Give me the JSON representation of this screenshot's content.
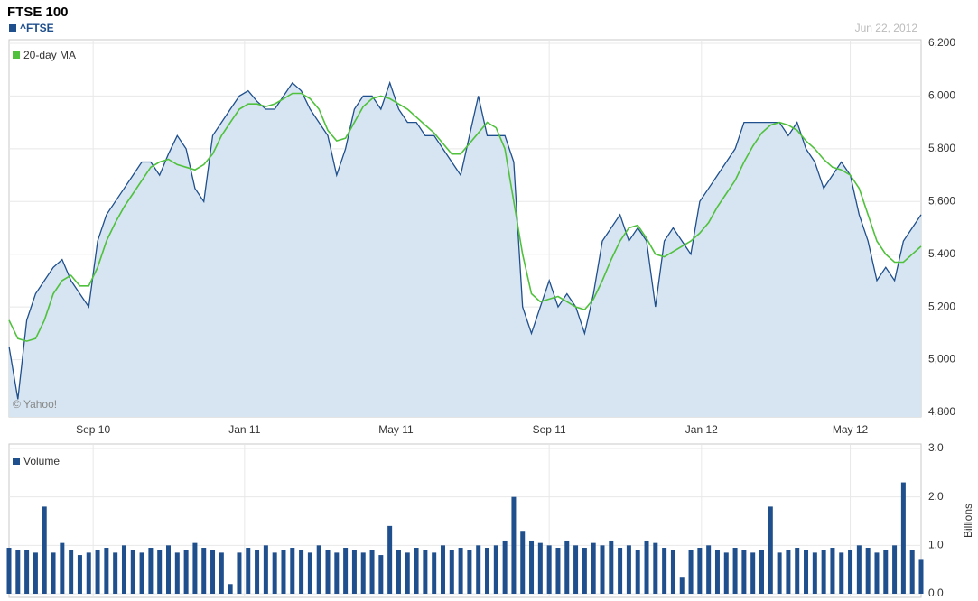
{
  "chart_data": [
    {
      "type": "line",
      "title": "FTSE 100",
      "annotations": [
        "Jun 22, 2012",
        "© Yahoo!"
      ],
      "xlim": [
        0,
        103
      ],
      "xticks": [
        {
          "value": 9.5,
          "label": "Sep 10"
        },
        {
          "value": 26.6,
          "label": "Jan 11"
        },
        {
          "value": 43.7,
          "label": "May 11"
        },
        {
          "value": 61.0,
          "label": "Sep 11"
        },
        {
          "value": 78.2,
          "label": "Jan 12"
        },
        {
          "value": 95.0,
          "label": "May 12"
        }
      ],
      "ylim": [
        4800,
        6200
      ],
      "yticks": [
        {
          "value": 4800,
          "label": "4,800"
        },
        {
          "value": 5000,
          "label": "5,000"
        },
        {
          "value": 5200,
          "label": "5,200"
        },
        {
          "value": 5400,
          "label": "5,400"
        },
        {
          "value": 5600,
          "label": "5,600"
        },
        {
          "value": 5800,
          "label": "5,800"
        },
        {
          "value": 6000,
          "label": "6,000"
        },
        {
          "value": 6200,
          "label": "6,200"
        }
      ],
      "grid": true,
      "series": [
        {
          "name": "^FTSE",
          "color": "#1f4f8c",
          "fill": "#d6e5f1",
          "values": [
            5050,
            4850,
            5150,
            5250,
            5300,
            5350,
            5380,
            5300,
            5250,
            5200,
            5450,
            5550,
            5600,
            5650,
            5700,
            5750,
            5750,
            5700,
            5780,
            5850,
            5800,
            5650,
            5600,
            5850,
            5900,
            5950,
            6000,
            6020,
            5980,
            5950,
            5950,
            6000,
            6050,
            6020,
            5950,
            5900,
            5850,
            5700,
            5800,
            5950,
            6000,
            6000,
            5950,
            6050,
            5950,
            5900,
            5900,
            5850,
            5850,
            5800,
            5750,
            5700,
            5850,
            6000,
            5850,
            5850,
            5850,
            5750,
            5200,
            5100,
            5200,
            5300,
            5200,
            5250,
            5200,
            5100,
            5250,
            5450,
            5500,
            5550,
            5450,
            5500,
            5450,
            5200,
            5450,
            5500,
            5450,
            5400,
            5600,
            5650,
            5700,
            5750,
            5800,
            5900,
            5900,
            5900,
            5900,
            5900,
            5850,
            5900,
            5800,
            5750,
            5650,
            5700,
            5750,
            5700,
            5550,
            5450,
            5300,
            5350,
            5300,
            5450,
            5500,
            5550
          ]
        },
        {
          "name": "20-day MA",
          "color": "#4fc13c",
          "values": [
            5150,
            5080,
            5070,
            5080,
            5150,
            5250,
            5300,
            5320,
            5280,
            5280,
            5350,
            5450,
            5520,
            5580,
            5630,
            5680,
            5730,
            5750,
            5760,
            5740,
            5730,
            5720,
            5740,
            5780,
            5850,
            5900,
            5950,
            5970,
            5970,
            5960,
            5970,
            5990,
            6010,
            6010,
            5990,
            5950,
            5870,
            5830,
            5840,
            5900,
            5960,
            5990,
            6000,
            5990,
            5970,
            5950,
            5920,
            5890,
            5860,
            5820,
            5780,
            5780,
            5820,
            5860,
            5900,
            5880,
            5800,
            5600,
            5400,
            5250,
            5220,
            5230,
            5240,
            5220,
            5200,
            5190,
            5230,
            5300,
            5380,
            5450,
            5500,
            5510,
            5460,
            5400,
            5390,
            5410,
            5430,
            5450,
            5480,
            5520,
            5580,
            5630,
            5680,
            5750,
            5810,
            5860,
            5890,
            5900,
            5890,
            5870,
            5830,
            5800,
            5760,
            5730,
            5720,
            5700,
            5650,
            5550,
            5450,
            5400,
            5370,
            5370,
            5400,
            5430
          ]
        }
      ]
    },
    {
      "type": "bar",
      "ylabel": "Billions",
      "xlim": [
        0,
        103
      ],
      "ylim": [
        0,
        3
      ],
      "yticks": [
        {
          "value": 0,
          "label": "0.0"
        },
        {
          "value": 1,
          "label": "1.0"
        },
        {
          "value": 2,
          "label": "2.0"
        },
        {
          "value": 3,
          "label": "3.0"
        }
      ],
      "grid": true,
      "series": [
        {
          "name": "Volume",
          "color": "#1f4f8c",
          "values": [
            0.95,
            0.9,
            0.9,
            0.85,
            1.8,
            0.85,
            1.05,
            0.9,
            0.8,
            0.85,
            0.9,
            0.95,
            0.85,
            1.0,
            0.9,
            0.85,
            0.95,
            0.9,
            1.0,
            0.85,
            0.9,
            1.05,
            0.95,
            0.9,
            0.85,
            0.2,
            0.85,
            0.95,
            0.9,
            1.0,
            0.85,
            0.9,
            0.95,
            0.9,
            0.85,
            1.0,
            0.9,
            0.85,
            0.95,
            0.9,
            0.85,
            0.9,
            0.8,
            1.4,
            0.9,
            0.85,
            0.95,
            0.9,
            0.85,
            1.0,
            0.9,
            0.95,
            0.9,
            1.0,
            0.95,
            1.0,
            1.1,
            2.0,
            1.3,
            1.1,
            1.05,
            1.0,
            0.95,
            1.1,
            1.0,
            0.95,
            1.05,
            1.0,
            1.1,
            0.95,
            1.0,
            0.9,
            1.1,
            1.05,
            0.95,
            0.9,
            0.35,
            0.9,
            0.95,
            1.0,
            0.9,
            0.85,
            0.95,
            0.9,
            0.85,
            0.9,
            1.8,
            0.85,
            0.9,
            0.95,
            0.9,
            0.85,
            0.9,
            0.95,
            0.85,
            0.9,
            1.0,
            0.95,
            0.85,
            0.9,
            1.0,
            2.3,
            0.9,
            0.7
          ]
        }
      ]
    }
  ]
}
